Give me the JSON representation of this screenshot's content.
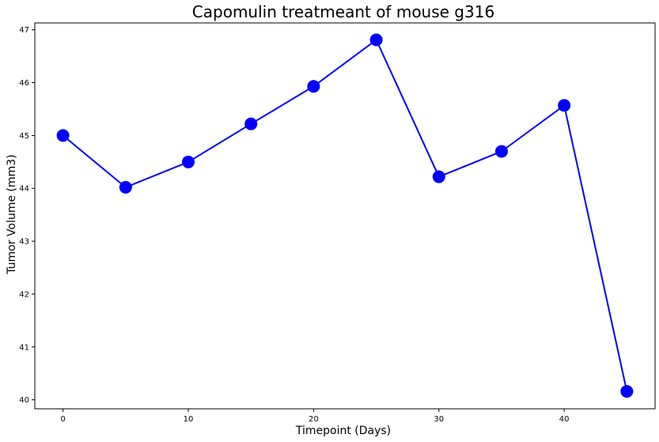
{
  "chart_data": {
    "type": "line",
    "title": "Capomulin treatmeant of mouse g316",
    "xlabel": "Timepoint (Days)",
    "ylabel": "Tumor Volume (mm3)",
    "x": [
      0,
      5,
      10,
      15,
      20,
      25,
      30,
      35,
      40,
      45
    ],
    "series": [
      {
        "values": [
          45.0,
          44.02,
          44.5,
          45.22,
          45.93,
          46.81,
          44.22,
          44.7,
          45.57,
          40.16
        ]
      }
    ],
    "xticks": [
      "0",
      "10",
      "20",
      "30",
      "40"
    ],
    "yticks": [
      "40",
      "41",
      "42",
      "43",
      "44",
      "45",
      "46",
      "47"
    ],
    "xlim": [
      -2.25,
      47.25
    ],
    "ylim": [
      39.83,
      47.13
    ],
    "grid": false,
    "legend": "none",
    "colors": {
      "line": "#0000ff",
      "marker": "#0000ff"
    }
  }
}
